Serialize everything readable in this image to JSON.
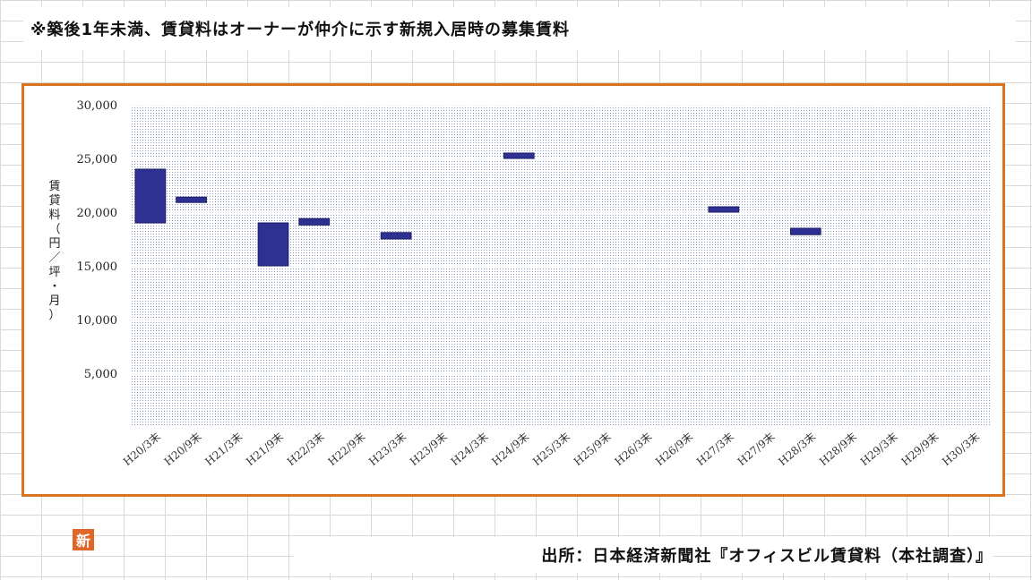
{
  "note": "※築後1年未満、賃貸料はオーナーが仲介に示す新規入居時の募集賃料",
  "source": "出所：日本経済新聞社『オフィスビル賃貸料（本社調査）』",
  "logo_text": "新",
  "colors": {
    "frame": "#d9731f",
    "bar": "#2e3192",
    "plot_bg": "#e8eaf2",
    "logo": "#e0662a"
  },
  "chart_data": {
    "type": "bar",
    "subtype": "floating",
    "ylabel": "賃貸料（円／坪・月）",
    "ylim": [
      0,
      30000
    ],
    "yticks": [
      5000,
      10000,
      15000,
      20000,
      25000,
      30000
    ],
    "ytick_labels": [
      "5,000",
      "10,000",
      "15,000",
      "20,000",
      "25,000",
      "30,000"
    ],
    "grid": true,
    "categories": [
      "H20/3末",
      "H20/9末",
      "H21/3末",
      "H21/9末",
      "H22/3末",
      "H22/9末",
      "H23/3末",
      "H23/9末",
      "H24/3末",
      "H24/9末",
      "H25/3末",
      "H25/9末",
      "H26/3末",
      "H26/9末",
      "H27/3末",
      "H27/9末",
      "H28/3末",
      "H28/9末",
      "H29/3末",
      "H29/9末",
      "H30/3末"
    ],
    "series": [
      {
        "low": [
          19000,
          20900,
          null,
          15000,
          18800,
          null,
          17500,
          null,
          null,
          25000,
          null,
          null,
          null,
          null,
          20000,
          null,
          17900,
          null,
          null,
          null,
          null
        ],
        "high": [
          24000,
          21400,
          null,
          19000,
          19400,
          null,
          18100,
          null,
          null,
          25500,
          null,
          null,
          null,
          null,
          20500,
          null,
          18500,
          null,
          null,
          null,
          null
        ]
      }
    ]
  }
}
